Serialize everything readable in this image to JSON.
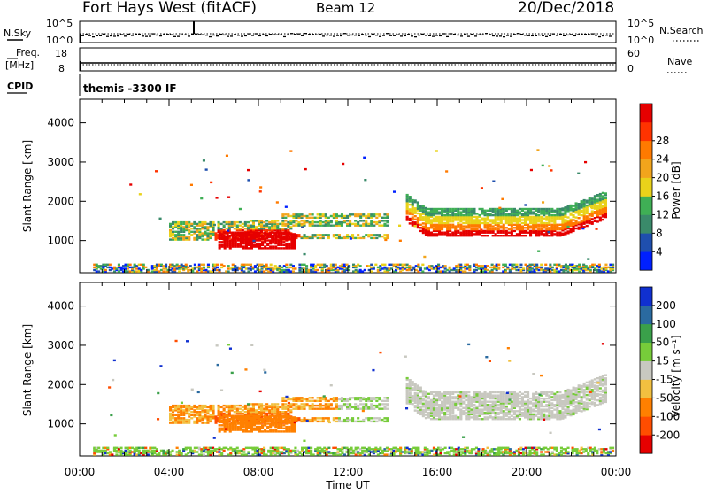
{
  "header": {
    "title": "Fort Hays West (fitACF)",
    "beam": "Beam 12",
    "date": "20/Dec/2018"
  },
  "status_panels": {
    "nsky_label": "N.Sky",
    "nsky_ticks": [
      "10^5",
      "10^0"
    ],
    "nsearch_label": "N.Search",
    "nsearch_ticks": [
      "10^5",
      "10^0"
    ],
    "freq_label": "Freq.",
    "freq_unit": "[MHz]",
    "freq_ticks": [
      "18",
      "8"
    ],
    "nave_label": "Nave",
    "nave_ticks": [
      "60",
      "0"
    ],
    "cpid_label": "CPID",
    "cpid_value": "themis -3300 IF"
  },
  "colors": {
    "power_scale": [
      "#0020ff",
      "#1f4fae",
      "#3a8a6a",
      "#3faf55",
      "#e9d21a",
      "#f2a51c",
      "#ff7a00",
      "#ff3300",
      "#e60000"
    ],
    "velocity_scale": [
      "#e60000",
      "#ff4d00",
      "#ff8000",
      "#f2c040",
      "#c8c8c0",
      "#77cc3a",
      "#3aa04a",
      "#2a6aa0",
      "#1030d0"
    ]
  },
  "chart_data": [
    {
      "type": "heatmap",
      "name": "power",
      "title": "",
      "xlabel": "",
      "ylabel": "Slant Range [km]",
      "x_ticks": [
        "00:00",
        "04:00",
        "08:00",
        "12:00",
        "16:00",
        "20:00",
        "00:00"
      ],
      "xlim_hours": [
        0,
        24
      ],
      "ylim": [
        180,
        4600
      ],
      "y_ticks": [
        1000,
        2000,
        3000,
        4000
      ],
      "colorbar": {
        "label": "Power [dB]",
        "ticks": [
          4,
          8,
          12,
          16,
          20,
          24,
          28
        ],
        "range": [
          0,
          32
        ]
      },
      "regions": [
        {
          "t_hours": [
            4.0,
            13.8
          ],
          "range_km": [
            1000,
            1600
          ],
          "level": "moderate"
        },
        {
          "t_hours": [
            6.0,
            9.5
          ],
          "range_km": [
            800,
            1300
          ],
          "level": "high"
        },
        {
          "t_hours": [
            14.6,
            23.6
          ],
          "range_km": [
            1100,
            2000
          ],
          "level": "high"
        },
        {
          "t_hours": [
            0.0,
            24.0
          ],
          "range_km": [
            180,
            400
          ],
          "level": "mixed"
        }
      ]
    },
    {
      "type": "heatmap",
      "name": "velocity",
      "title": "",
      "xlabel": "Time UT",
      "ylabel": "Slant Range [km]",
      "x_ticks": [
        "00:00",
        "04:00",
        "08:00",
        "12:00",
        "16:00",
        "20:00",
        "00:00"
      ],
      "xlim_hours": [
        0,
        24
      ],
      "ylim": [
        180,
        4600
      ],
      "y_ticks": [
        1000,
        2000,
        3000,
        4000
      ],
      "colorbar": {
        "label": "Velocity [m s⁻¹]",
        "ticks": [
          -200,
          -100,
          -50,
          -15,
          15,
          50,
          100,
          200
        ]
      },
      "regions": [
        {
          "t_hours": [
            4.0,
            13.8
          ],
          "range_km": [
            1000,
            1600
          ],
          "velocity_class": "-100 to -50"
        },
        {
          "t_hours": [
            14.6,
            23.6
          ],
          "range_km": [
            1100,
            2000
          ],
          "velocity_class": "-15 to 15"
        },
        {
          "t_hours": [
            0.0,
            24.0
          ],
          "range_km": [
            180,
            400
          ],
          "velocity_class": "15 to 50"
        }
      ]
    }
  ]
}
